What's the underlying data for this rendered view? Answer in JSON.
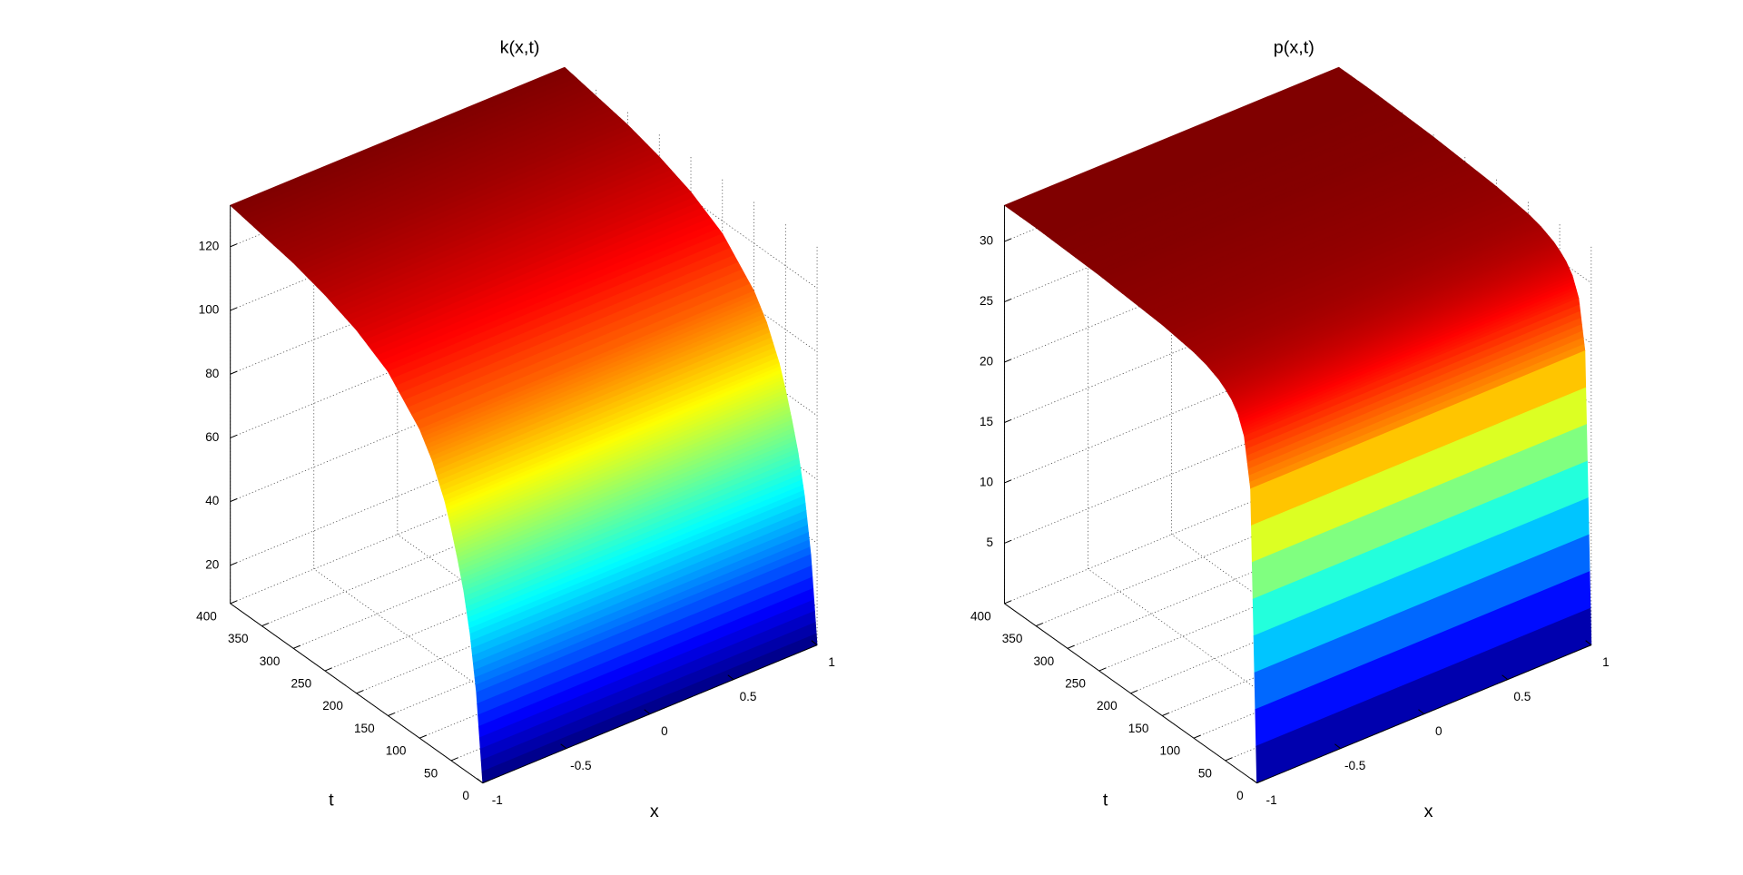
{
  "chart_data": [
    {
      "type": "surface",
      "title": "k(x,t)",
      "xlabel": "x",
      "ylabel": "t",
      "colormap": "jet",
      "grid": true,
      "xlim": [
        -1,
        1
      ],
      "xticks": [
        -1,
        -0.5,
        0,
        0.5,
        1
      ],
      "ylim": [
        0,
        400
      ],
      "yticks": [
        0,
        50,
        100,
        150,
        200,
        250,
        300,
        350,
        400
      ],
      "zlim": [
        8,
        133
      ],
      "zticks": [
        20,
        40,
        60,
        80,
        100,
        120
      ],
      "y": [
        0,
        10,
        20,
        30,
        40,
        50,
        60,
        80,
        100,
        150,
        200,
        250,
        300,
        350,
        400
      ],
      "values": [
        8,
        35,
        52,
        64,
        73,
        81,
        88,
        98,
        105,
        116,
        122,
        126,
        129,
        131,
        133
      ]
    },
    {
      "type": "surface",
      "title": "p(x,t)",
      "xlabel": "x",
      "ylabel": "t",
      "colormap": "jet",
      "grid": true,
      "xlim": [
        -1,
        1
      ],
      "xticks": [
        -1,
        -0.5,
        0,
        0.5,
        1
      ],
      "ylim": [
        0,
        400
      ],
      "yticks": [
        0,
        50,
        100,
        150,
        200,
        250,
        300,
        350,
        400
      ],
      "zlim": [
        0,
        33
      ],
      "zticks": [
        5,
        10,
        15,
        20,
        25,
        30
      ],
      "y": [
        0,
        10,
        20,
        30,
        40,
        50,
        60,
        80,
        100,
        150,
        200,
        250,
        300,
        350,
        400
      ],
      "values": [
        0,
        24,
        28,
        29.5,
        30.3,
        30.8,
        31.2,
        31.7,
        32,
        32.4,
        32.6,
        32.8,
        32.9,
        33,
        33
      ]
    }
  ]
}
